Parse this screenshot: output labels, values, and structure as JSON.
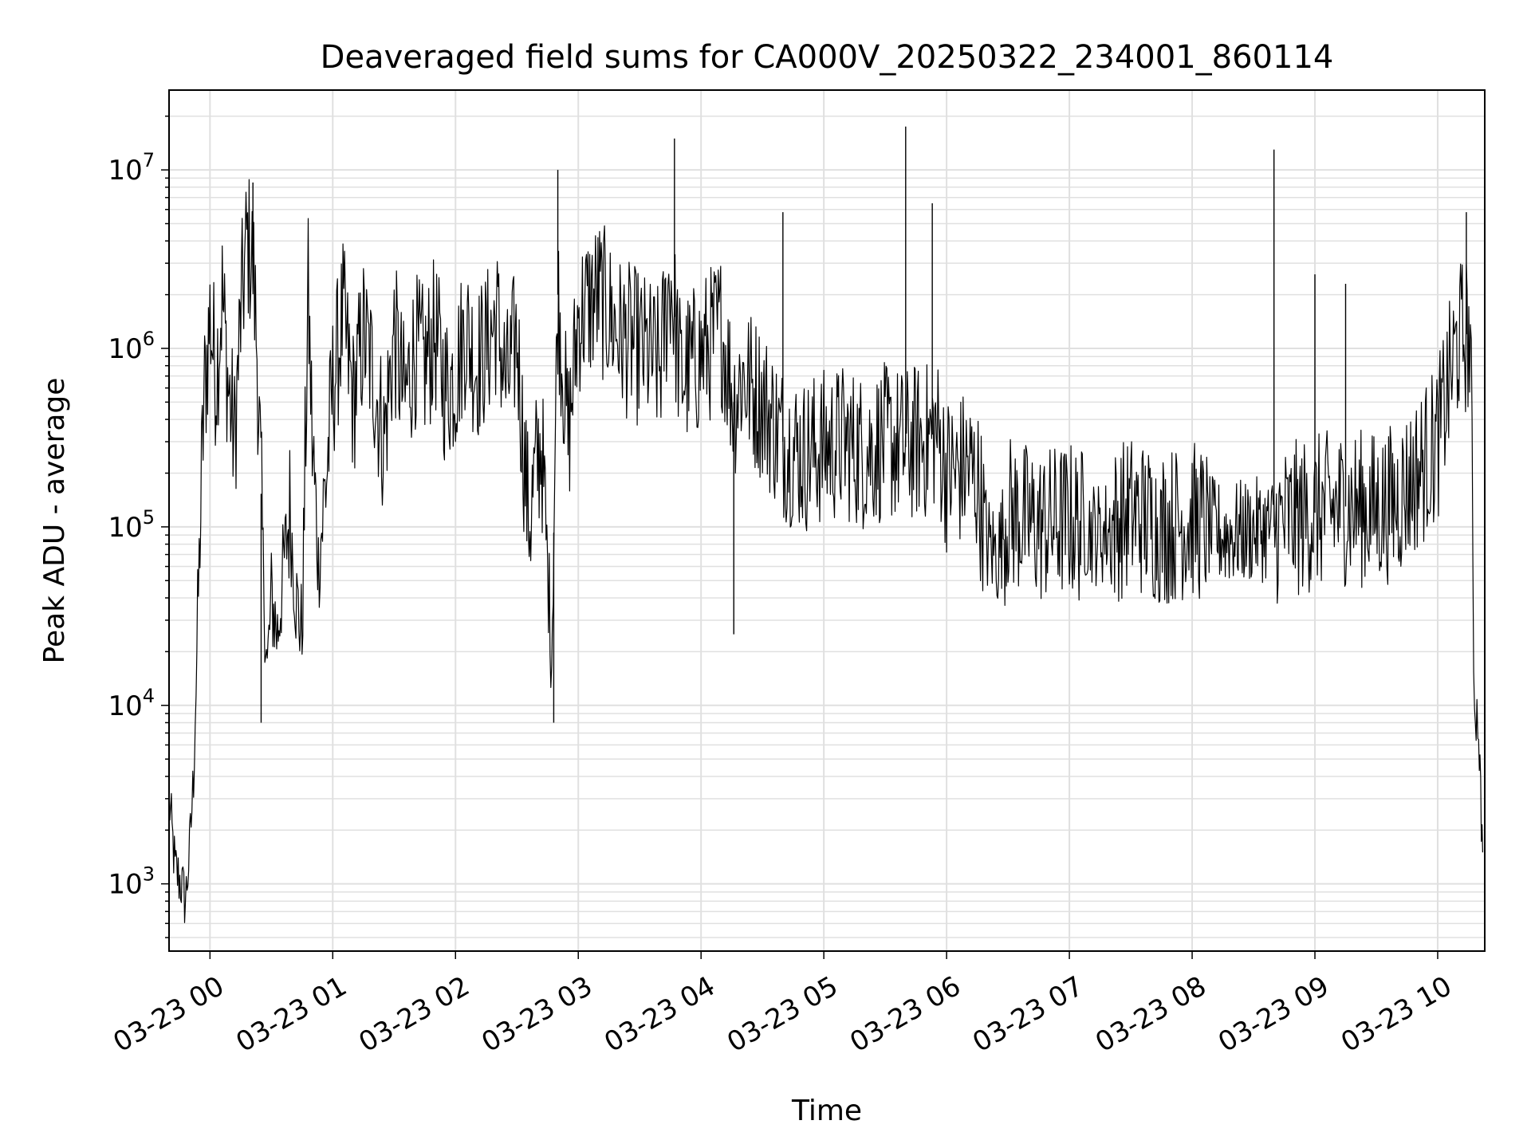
{
  "chart_data": {
    "type": "line",
    "title": "Deaveraged field sums for CA000V_20250322_234001_860114",
    "xlabel": "Time",
    "ylabel": "Peak ADU - average",
    "yscale": "log",
    "ylim": [
      420,
      28000000
    ],
    "xlim": [
      "03-22 23:40",
      "03-23 10:23"
    ],
    "grid": true,
    "line_color": "#000000",
    "x_ticks": [
      "03-23 00",
      "03-23 01",
      "03-23 02",
      "03-23 03",
      "03-23 04",
      "03-23 05",
      "03-23 06",
      "03-23 07",
      "03-23 08",
      "03-23 09",
      "03-23 10"
    ],
    "y_ticks": [
      {
        "value": 1000,
        "base": "10",
        "exp": "3"
      },
      {
        "value": 10000,
        "base": "10",
        "exp": "4"
      },
      {
        "value": 100000,
        "base": "10",
        "exp": "5"
      },
      {
        "value": 1000000,
        "base": "10",
        "exp": "6"
      },
      {
        "value": 10000000,
        "base": "10",
        "exp": "7"
      }
    ],
    "series": [
      {
        "x": [
          "03-22 23:40",
          "03-22 23:43",
          "03-22 23:46",
          "03-22 23:48",
          "03-22 23:50",
          "03-22 23:52",
          "03-22 23:54",
          "03-22 23:57",
          "03-23 00:00",
          "03-23 00:03",
          "03-23 00:06",
          "03-23 00:09",
          "03-23 00:12",
          "03-23 00:15",
          "03-23 00:18",
          "03-23 00:21",
          "03-23 00:23",
          "03-23 00:26",
          "03-23 00:28",
          "03-23 00:30",
          "03-23 00:33",
          "03-23 00:36",
          "03-23 00:39",
          "03-23 00:42",
          "03-23 00:45",
          "03-23 00:48",
          "03-23 00:50",
          "03-23 00:53",
          "03-23 00:57",
          "03-23 01:00",
          "03-23 01:05",
          "03-23 01:10",
          "03-23 01:15",
          "03-23 01:20",
          "03-23 01:25",
          "03-23 01:30",
          "03-23 01:35",
          "03-23 01:40",
          "03-23 01:45",
          "03-23 01:50",
          "03-23 01:55",
          "03-23 02:00",
          "03-23 02:05",
          "03-23 02:10",
          "03-23 02:15",
          "03-23 02:20",
          "03-23 02:25",
          "03-23 02:30",
          "03-23 02:33",
          "03-23 02:36",
          "03-23 02:39",
          "03-23 02:42",
          "03-23 02:45",
          "03-23 02:47",
          "03-23 02:50",
          "03-23 02:55",
          "03-23 03:00",
          "03-23 03:10",
          "03-23 03:20",
          "03-23 03:30",
          "03-23 03:40",
          "03-23 03:45",
          "03-23 03:50",
          "03-23 04:00",
          "03-23 04:10",
          "03-23 04:16",
          "03-23 04:20",
          "03-23 04:30",
          "03-23 04:40",
          "03-23 04:50",
          "03-23 05:00",
          "03-23 05:10",
          "03-23 05:20",
          "03-23 05:30",
          "03-23 05:40",
          "03-23 05:45",
          "03-23 05:50",
          "03-23 05:55",
          "03-23 06:00",
          "03-23 06:05",
          "03-23 06:10",
          "03-23 06:15",
          "03-23 06:20",
          "03-23 06:25",
          "03-23 06:30",
          "03-23 06:45",
          "03-23 07:00",
          "03-23 07:15",
          "03-23 07:30",
          "03-23 07:45",
          "03-23 08:00",
          "03-23 08:15",
          "03-23 08:30",
          "03-23 08:40",
          "03-23 08:50",
          "03-23 09:00",
          "03-23 09:15",
          "03-23 09:30",
          "03-23 09:40",
          "03-23 09:50",
          "03-23 10:00",
          "03-23 10:05",
          "03-23 10:10",
          "03-23 10:14",
          "03-23 10:16",
          "03-23 10:18",
          "03-23 10:20",
          "03-23 10:21",
          "03-23 10:22"
        ],
        "y": [
          3000,
          1200,
          1000,
          800,
          1500,
          4000,
          30000,
          500000,
          1500000,
          700000,
          2000000,
          600000,
          300000,
          1500000,
          4000000,
          3000000,
          1000000,
          60000,
          15000,
          40000,
          25000,
          60000,
          120000,
          40000,
          25000,
          2000000,
          300000,
          60000,
          200000,
          600000,
          1500000,
          500000,
          1200000,
          700000,
          300000,
          1200000,
          500000,
          1000000,
          800000,
          1200000,
          600000,
          700000,
          1300000,
          800000,
          1000000,
          1500000,
          600000,
          1200000,
          300000,
          100000,
          200000,
          300000,
          60000,
          20000,
          2000000,
          300000,
          1500000,
          2000000,
          1200000,
          1000000,
          800000,
          2500000,
          700000,
          900000,
          1300000,
          500000,
          700000,
          500000,
          300000,
          250000,
          280000,
          300000,
          260000,
          300000,
          280000,
          300000,
          300000,
          350000,
          200000,
          200000,
          220000,
          180000,
          80000,
          70000,
          120000,
          100000,
          110000,
          90000,
          120000,
          100000,
          110000,
          90000,
          95000,
          100000,
          110000,
          120000,
          130000,
          125000,
          140000,
          200000,
          300000,
          600000,
          1100000,
          1200000,
          1100000,
          10000,
          8000,
          3000,
          1500
        ]
      }
    ],
    "spikes": [
      {
        "x": "03-23 00:21",
        "y": 8500000
      },
      {
        "x": "03-23 02:50",
        "y": 10000000
      },
      {
        "x": "03-23 03:47",
        "y": 15000000
      },
      {
        "x": "03-23 04:16",
        "y": 25000
      },
      {
        "x": "03-23 04:40",
        "y": 5800000
      },
      {
        "x": "03-23 05:40",
        "y": 17500000
      },
      {
        "x": "03-23 05:53",
        "y": 6500000
      },
      {
        "x": "03-23 08:40",
        "y": 13000000
      },
      {
        "x": "03-23 09:00",
        "y": 2600000
      },
      {
        "x": "03-23 09:15",
        "y": 2300000
      },
      {
        "x": "03-23 10:14",
        "y": 5800000
      },
      {
        "x": "03-23 02:48",
        "y": 8000
      },
      {
        "x": "03-23 00:25",
        "y": 8000
      }
    ]
  }
}
